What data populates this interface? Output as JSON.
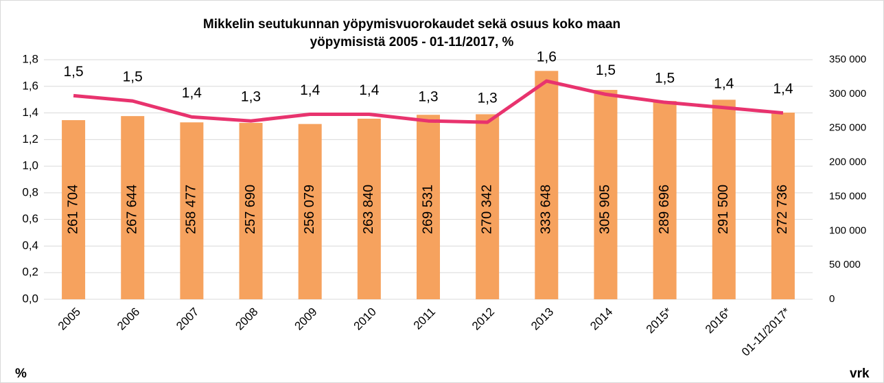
{
  "chart_data": {
    "type": "bar-line",
    "title": [
      "Mikkelin seutukunnan yöpymisvuorokaudet sekä osuus koko maan",
      "yöpymisistä 2005 - 01-11/2017, %"
    ],
    "ylabel": "%",
    "y2label": "vrk",
    "categories": [
      "2005",
      "2006",
      "2007",
      "2008",
      "2009",
      "2010",
      "2011",
      "2012",
      "2013",
      "2014",
      "2015*",
      "2016*",
      "01-11/2017*"
    ],
    "series": [
      {
        "name": "vrk",
        "type": "bar",
        "axis": "y2",
        "color": "#f6a25e",
        "values": [
          261704,
          267644,
          258477,
          257690,
          256079,
          263840,
          269531,
          270342,
          333648,
          305905,
          289696,
          291500,
          272736
        ],
        "value_labels": [
          "261 704",
          "267 644",
          "258 477",
          "257 690",
          "256 079",
          "263 840",
          "269 531",
          "270 342",
          "333 648",
          "305 905",
          "289 696",
          "291 500",
          "272 736"
        ]
      },
      {
        "name": "%",
        "type": "line",
        "axis": "y",
        "color": "#e8336e",
        "values": [
          1.53,
          1.49,
          1.37,
          1.34,
          1.39,
          1.39,
          1.34,
          1.33,
          1.64,
          1.54,
          1.48,
          1.44,
          1.4
        ],
        "value_labels": [
          "1,5",
          "1,5",
          "1,4",
          "1,3",
          "1,4",
          "1,4",
          "1,3",
          "1,3",
          "1,6",
          "1,5",
          "1,5",
          "1,4",
          "1,4"
        ]
      }
    ],
    "ylim": [
      0,
      1.8
    ],
    "yticks": [
      {
        "value": 0,
        "label": "0,0"
      },
      {
        "value": 0.2,
        "label": "0,2"
      },
      {
        "value": 0.4,
        "label": "0,4"
      },
      {
        "value": 0.6,
        "label": "0,6"
      },
      {
        "value": 0.8,
        "label": "0,8"
      },
      {
        "value": 1.0,
        "label": "1,0"
      },
      {
        "value": 1.2,
        "label": "1,2"
      },
      {
        "value": 1.4,
        "label": "1,4"
      },
      {
        "value": 1.6,
        "label": "1,6"
      },
      {
        "value": 1.8,
        "label": "1,8"
      }
    ],
    "y2lim": [
      0,
      350000
    ],
    "y2ticks": [
      0,
      {
        "value": 50000,
        "label": "50 000"
      },
      {
        "value": 100000,
        "label": "100 000"
      },
      {
        "value": 150000,
        "label": "150 000"
      },
      {
        "value": 200000,
        "label": "200 000"
      },
      {
        "value": 250000,
        "label": "250 000"
      },
      {
        "value": 300000,
        "label": "300 000"
      },
      {
        "value": 350000,
        "label": "350 000"
      }
    ],
    "grid": true
  }
}
